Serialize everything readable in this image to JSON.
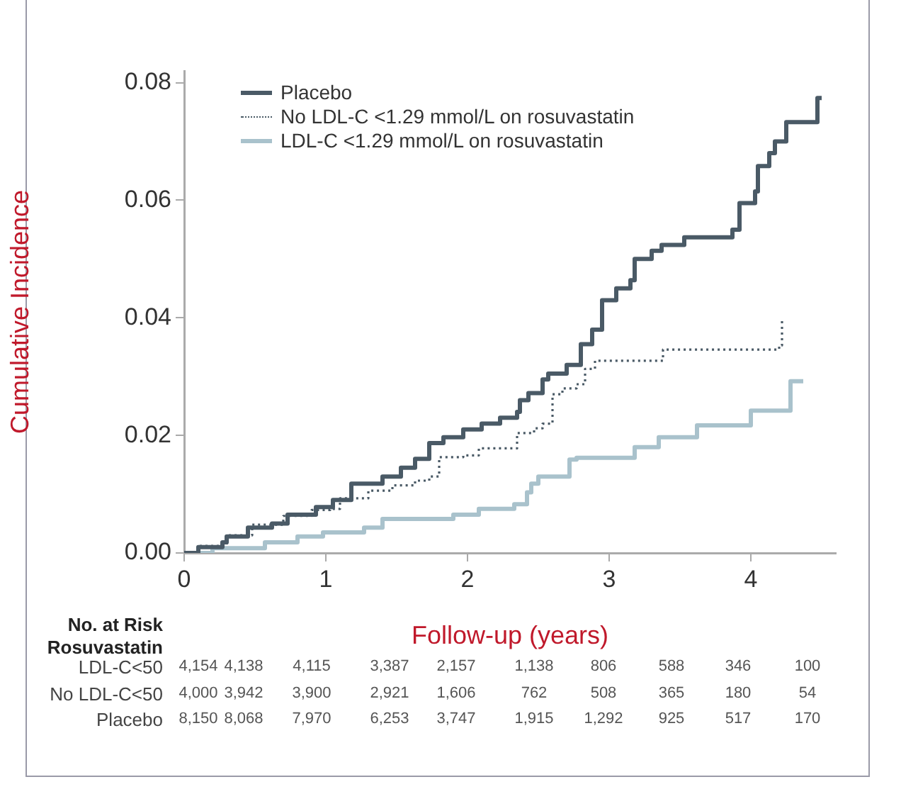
{
  "chart_data": {
    "type": "step",
    "xlabel": "Follow-up (years)",
    "ylabel": "Cumulative Incidence",
    "xlim": [
      0,
      4.6
    ],
    "xticks": [
      0,
      1,
      2,
      3,
      4
    ],
    "ylim": [
      0,
      0.082
    ],
    "yticks": [
      {
        "value": 0,
        "label": "0.00"
      },
      0.02,
      0.04,
      0.06,
      0.08
    ],
    "grid": false,
    "legend": "top left",
    "marker": "none",
    "series": [
      {
        "name": "Placebo",
        "color": "#4a5a66",
        "line_style": "solid",
        "x": [
          0,
          0.05,
          0.1,
          0.27,
          0.3,
          0.45,
          0.62,
          0.73,
          0.93,
          1.05,
          1.18,
          1.4,
          1.53,
          1.63,
          1.73,
          1.83,
          1.97,
          2.1,
          2.23,
          2.35,
          2.37,
          2.43,
          2.53,
          2.57,
          2.7,
          2.8,
          2.88,
          2.95,
          3.05,
          3.15,
          3.18,
          3.3,
          3.37,
          3.53,
          3.87,
          3.92,
          4.03,
          4.05,
          4.13,
          4.17,
          4.25,
          4.47,
          4.5
        ],
        "values": [
          0,
          0,
          0.001,
          0.0018,
          0.0028,
          0.0043,
          0.005,
          0.0065,
          0.0078,
          0.009,
          0.0118,
          0.013,
          0.0145,
          0.016,
          0.0187,
          0.0197,
          0.021,
          0.022,
          0.023,
          0.024,
          0.026,
          0.0272,
          0.0295,
          0.0305,
          0.032,
          0.0355,
          0.038,
          0.043,
          0.045,
          0.0464,
          0.05,
          0.0514,
          0.0524,
          0.0537,
          0.055,
          0.0595,
          0.0615,
          0.0658,
          0.068,
          0.07,
          0.0733,
          0.0774,
          0.0774
        ]
      },
      {
        "name": "No LDL-C <1.29 mmol/L on rosuvastatin",
        "color": "#4a5a66",
        "line_style": "dotted",
        "x": [
          0,
          0.05,
          0.1,
          0.3,
          0.48,
          0.7,
          0.9,
          1.03,
          1.1,
          1.3,
          1.47,
          1.63,
          1.73,
          1.8,
          1.97,
          2.08,
          2.35,
          2.47,
          2.53,
          2.6,
          2.67,
          2.77,
          2.83,
          2.9,
          3.38,
          4.2,
          4.22
        ],
        "values": [
          0,
          0,
          0.0012,
          0.003,
          0.0048,
          0.0063,
          0.0073,
          0.0075,
          0.0093,
          0.0106,
          0.0115,
          0.0123,
          0.013,
          0.0163,
          0.0166,
          0.0178,
          0.0204,
          0.0212,
          0.022,
          0.027,
          0.028,
          0.0287,
          0.0313,
          0.0327,
          0.0346,
          0.0353,
          0.04
        ]
      },
      {
        "name": "LDL-C <1.29 mmol/L on rosuvastatin",
        "color": "#a9c2cc",
        "line_style": "solid",
        "x": [
          0,
          0.05,
          0.2,
          0.57,
          0.8,
          0.98,
          1.27,
          1.4,
          1.9,
          2.08,
          2.33,
          2.42,
          2.45,
          2.5,
          2.72,
          2.77,
          3.18,
          3.35,
          3.62,
          4.0,
          4.28,
          4.37
        ],
        "values": [
          0,
          0,
          0.0008,
          0.0018,
          0.0028,
          0.0035,
          0.0043,
          0.0058,
          0.0065,
          0.0075,
          0.0083,
          0.0103,
          0.0118,
          0.013,
          0.0159,
          0.0162,
          0.018,
          0.0197,
          0.0217,
          0.0242,
          0.0292,
          0.0292
        ]
      }
    ],
    "annotations": [
      "No. at Risk",
      "Rosuvastatin",
      "LDL-C<50",
      "4,154",
      "4,138",
      "4,115",
      "3,387",
      "2,157",
      "1,138",
      "806",
      "588",
      "346",
      "100",
      "No LDL-C<50",
      "4,000",
      "3,942",
      "3,900",
      "2,921",
      "1,606",
      "762",
      "508",
      "365",
      "180",
      "54",
      "Placebo",
      "8,150",
      "8,068",
      "7,970",
      "6,253",
      "3,747",
      "1,915",
      "1,292",
      "925",
      "517",
      "170"
    ]
  }
}
